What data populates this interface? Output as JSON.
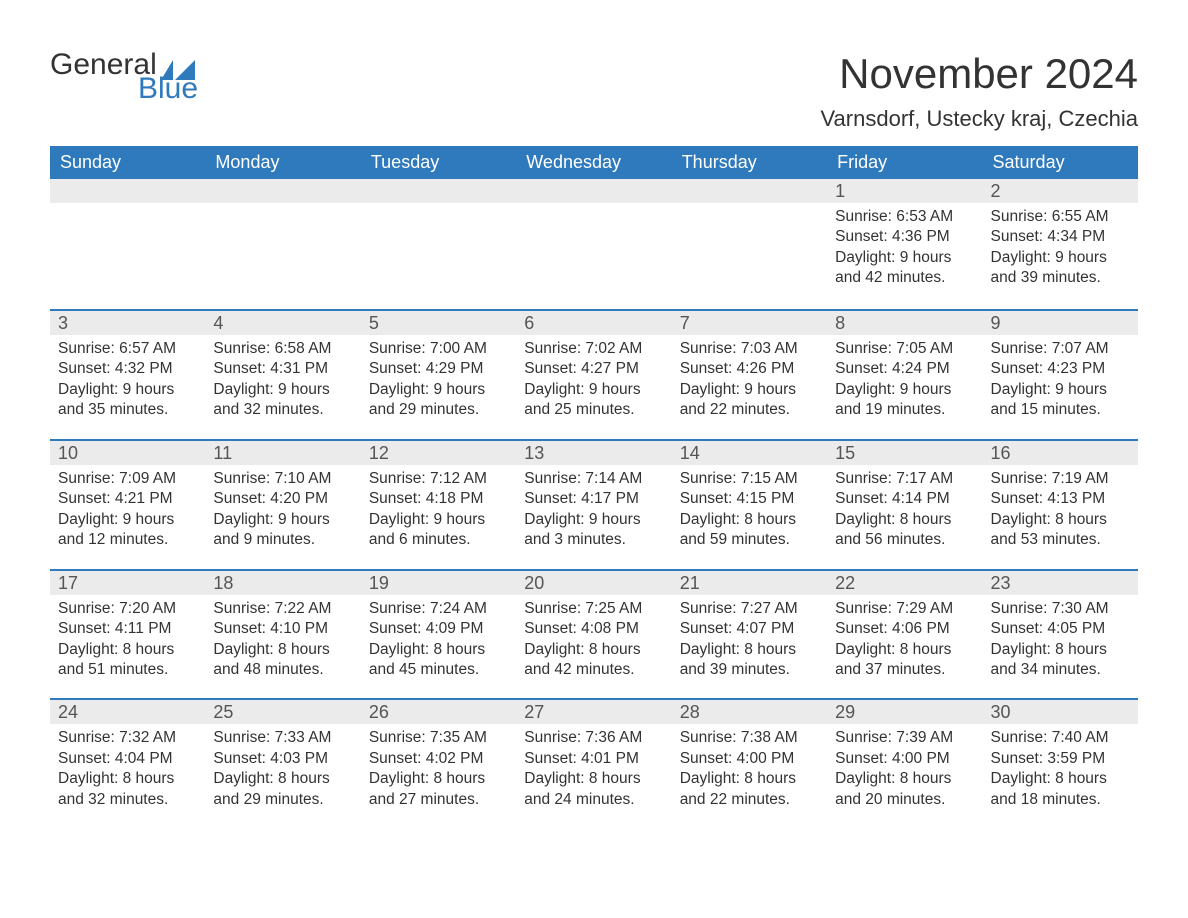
{
  "brand": {
    "part1": "General",
    "part2": "Blue",
    "part2_color": "#2f79bd",
    "flag_color": "#2f79bd"
  },
  "header": {
    "month_title": "November 2024",
    "location": "Varnsdorf, Ustecky kraj, Czechia"
  },
  "theme": {
    "header_bg": "#2f79bd",
    "header_fg": "#ffffff",
    "daynum_bg": "#ebebeb",
    "row_border": "#2f79bd",
    "text_color": "#333333",
    "page_bg": "#ffffff"
  },
  "calendar": {
    "day_names": [
      "Sunday",
      "Monday",
      "Tuesday",
      "Wednesday",
      "Thursday",
      "Friday",
      "Saturday"
    ],
    "weeks": [
      [
        null,
        null,
        null,
        null,
        null,
        {
          "n": 1,
          "sunrise": "6:53 AM",
          "sunset": "4:36 PM",
          "daylight": "9 hours and 42 minutes."
        },
        {
          "n": 2,
          "sunrise": "6:55 AM",
          "sunset": "4:34 PM",
          "daylight": "9 hours and 39 minutes."
        }
      ],
      [
        {
          "n": 3,
          "sunrise": "6:57 AM",
          "sunset": "4:32 PM",
          "daylight": "9 hours and 35 minutes."
        },
        {
          "n": 4,
          "sunrise": "6:58 AM",
          "sunset": "4:31 PM",
          "daylight": "9 hours and 32 minutes."
        },
        {
          "n": 5,
          "sunrise": "7:00 AM",
          "sunset": "4:29 PM",
          "daylight": "9 hours and 29 minutes."
        },
        {
          "n": 6,
          "sunrise": "7:02 AM",
          "sunset": "4:27 PM",
          "daylight": "9 hours and 25 minutes."
        },
        {
          "n": 7,
          "sunrise": "7:03 AM",
          "sunset": "4:26 PM",
          "daylight": "9 hours and 22 minutes."
        },
        {
          "n": 8,
          "sunrise": "7:05 AM",
          "sunset": "4:24 PM",
          "daylight": "9 hours and 19 minutes."
        },
        {
          "n": 9,
          "sunrise": "7:07 AM",
          "sunset": "4:23 PM",
          "daylight": "9 hours and 15 minutes."
        }
      ],
      [
        {
          "n": 10,
          "sunrise": "7:09 AM",
          "sunset": "4:21 PM",
          "daylight": "9 hours and 12 minutes."
        },
        {
          "n": 11,
          "sunrise": "7:10 AM",
          "sunset": "4:20 PM",
          "daylight": "9 hours and 9 minutes."
        },
        {
          "n": 12,
          "sunrise": "7:12 AM",
          "sunset": "4:18 PM",
          "daylight": "9 hours and 6 minutes."
        },
        {
          "n": 13,
          "sunrise": "7:14 AM",
          "sunset": "4:17 PM",
          "daylight": "9 hours and 3 minutes."
        },
        {
          "n": 14,
          "sunrise": "7:15 AM",
          "sunset": "4:15 PM",
          "daylight": "8 hours and 59 minutes."
        },
        {
          "n": 15,
          "sunrise": "7:17 AM",
          "sunset": "4:14 PM",
          "daylight": "8 hours and 56 minutes."
        },
        {
          "n": 16,
          "sunrise": "7:19 AM",
          "sunset": "4:13 PM",
          "daylight": "8 hours and 53 minutes."
        }
      ],
      [
        {
          "n": 17,
          "sunrise": "7:20 AM",
          "sunset": "4:11 PM",
          "daylight": "8 hours and 51 minutes."
        },
        {
          "n": 18,
          "sunrise": "7:22 AM",
          "sunset": "4:10 PM",
          "daylight": "8 hours and 48 minutes."
        },
        {
          "n": 19,
          "sunrise": "7:24 AM",
          "sunset": "4:09 PM",
          "daylight": "8 hours and 45 minutes."
        },
        {
          "n": 20,
          "sunrise": "7:25 AM",
          "sunset": "4:08 PM",
          "daylight": "8 hours and 42 minutes."
        },
        {
          "n": 21,
          "sunrise": "7:27 AM",
          "sunset": "4:07 PM",
          "daylight": "8 hours and 39 minutes."
        },
        {
          "n": 22,
          "sunrise": "7:29 AM",
          "sunset": "4:06 PM",
          "daylight": "8 hours and 37 minutes."
        },
        {
          "n": 23,
          "sunrise": "7:30 AM",
          "sunset": "4:05 PM",
          "daylight": "8 hours and 34 minutes."
        }
      ],
      [
        {
          "n": 24,
          "sunrise": "7:32 AM",
          "sunset": "4:04 PM",
          "daylight": "8 hours and 32 minutes."
        },
        {
          "n": 25,
          "sunrise": "7:33 AM",
          "sunset": "4:03 PM",
          "daylight": "8 hours and 29 minutes."
        },
        {
          "n": 26,
          "sunrise": "7:35 AM",
          "sunset": "4:02 PM",
          "daylight": "8 hours and 27 minutes."
        },
        {
          "n": 27,
          "sunrise": "7:36 AM",
          "sunset": "4:01 PM",
          "daylight": "8 hours and 24 minutes."
        },
        {
          "n": 28,
          "sunrise": "7:38 AM",
          "sunset": "4:00 PM",
          "daylight": "8 hours and 22 minutes."
        },
        {
          "n": 29,
          "sunrise": "7:39 AM",
          "sunset": "4:00 PM",
          "daylight": "8 hours and 20 minutes."
        },
        {
          "n": 30,
          "sunrise": "7:40 AM",
          "sunset": "3:59 PM",
          "daylight": "8 hours and 18 minutes."
        }
      ]
    ],
    "labels": {
      "sunrise": "Sunrise:",
      "sunset": "Sunset:",
      "daylight": "Daylight:"
    }
  }
}
